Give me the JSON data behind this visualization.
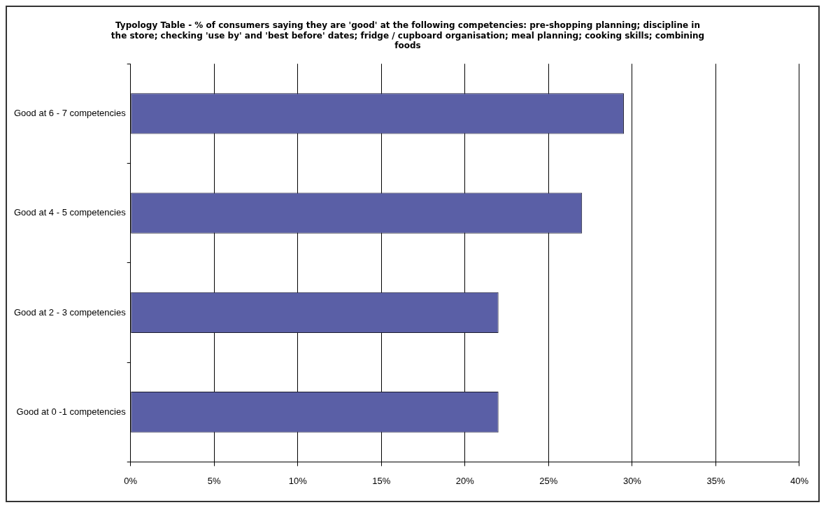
{
  "chart_data": {
    "type": "bar",
    "orientation": "horizontal",
    "title": "Typology Table - % of consumers saying they are 'good' at the following competencies: pre-shopping planning; discipline in the store; checking 'use by' and 'best before' dates; fridge / cupboard organisation; meal planning; cooking skills; combining foods",
    "categories": [
      "Good at 6 - 7 competencies",
      "Good at 4 - 5 competencies",
      "Good at 2 - 3 competencies",
      "Good at 0 -1 competencies"
    ],
    "values": [
      29.5,
      27,
      22,
      22
    ],
    "color": "#5a5fa6",
    "xlim": [
      0,
      40
    ],
    "xticks": [
      {
        "value": 0,
        "label": "0%"
      },
      {
        "value": 5,
        "label": "5%"
      },
      {
        "value": 10,
        "label": "10%"
      },
      {
        "value": 15,
        "label": "15%"
      },
      {
        "value": 20,
        "label": "20%"
      },
      {
        "value": 25,
        "label": "25%"
      },
      {
        "value": 30,
        "label": "30%"
      },
      {
        "value": 35,
        "label": "35%"
      },
      {
        "value": 40,
        "label": "40%"
      }
    ],
    "grid": "x",
    "legend": false
  }
}
